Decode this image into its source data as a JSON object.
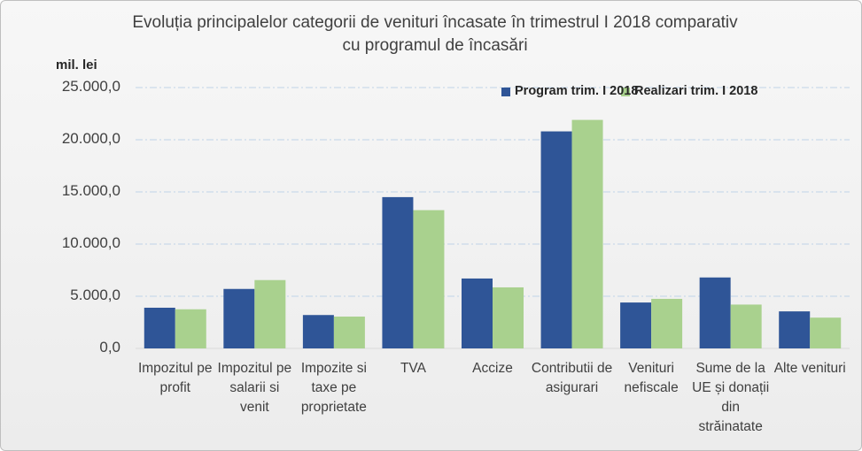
{
  "chart_data": {
    "type": "bar",
    "title": "Evoluția principalelor categorii de venituri încasate în trimestrul I 2018 comparativ cu programul de încasări",
    "y_label": "mil. lei",
    "categories": [
      "Impozitul pe profit",
      "Impozitul pe salarii si venit",
      "Impozite si taxe pe proprietate",
      "TVA",
      "Accize",
      "Contributii de asigurari",
      "Venituri nefiscale",
      "Sume de la UE și donații din străinatate",
      "Alte venituri"
    ],
    "series": [
      {
        "name": "Program trim. I 2018",
        "color": "#2f5597",
        "values": [
          3900,
          5700,
          3200,
          14500,
          6700,
          20800,
          4400,
          6800,
          3550
        ]
      },
      {
        "name": "Realizari trim. I 2018",
        "color": "#a9d18e",
        "values": [
          3750,
          6550,
          3050,
          13250,
          5850,
          21900,
          4750,
          4200,
          2950
        ]
      }
    ],
    "ylim": [
      0,
      25000
    ],
    "yticks": [
      {
        "value": 0,
        "label": "0,0"
      },
      {
        "value": 5000,
        "label": "5.000,0"
      },
      {
        "value": 10000,
        "label": "10.000,0"
      },
      {
        "value": 15000,
        "label": "15.000,0"
      },
      {
        "value": 20000,
        "label": "20.000,0"
      },
      {
        "value": 25000,
        "label": "25.000,0"
      }
    ],
    "grid": true,
    "legend": "top-right"
  }
}
